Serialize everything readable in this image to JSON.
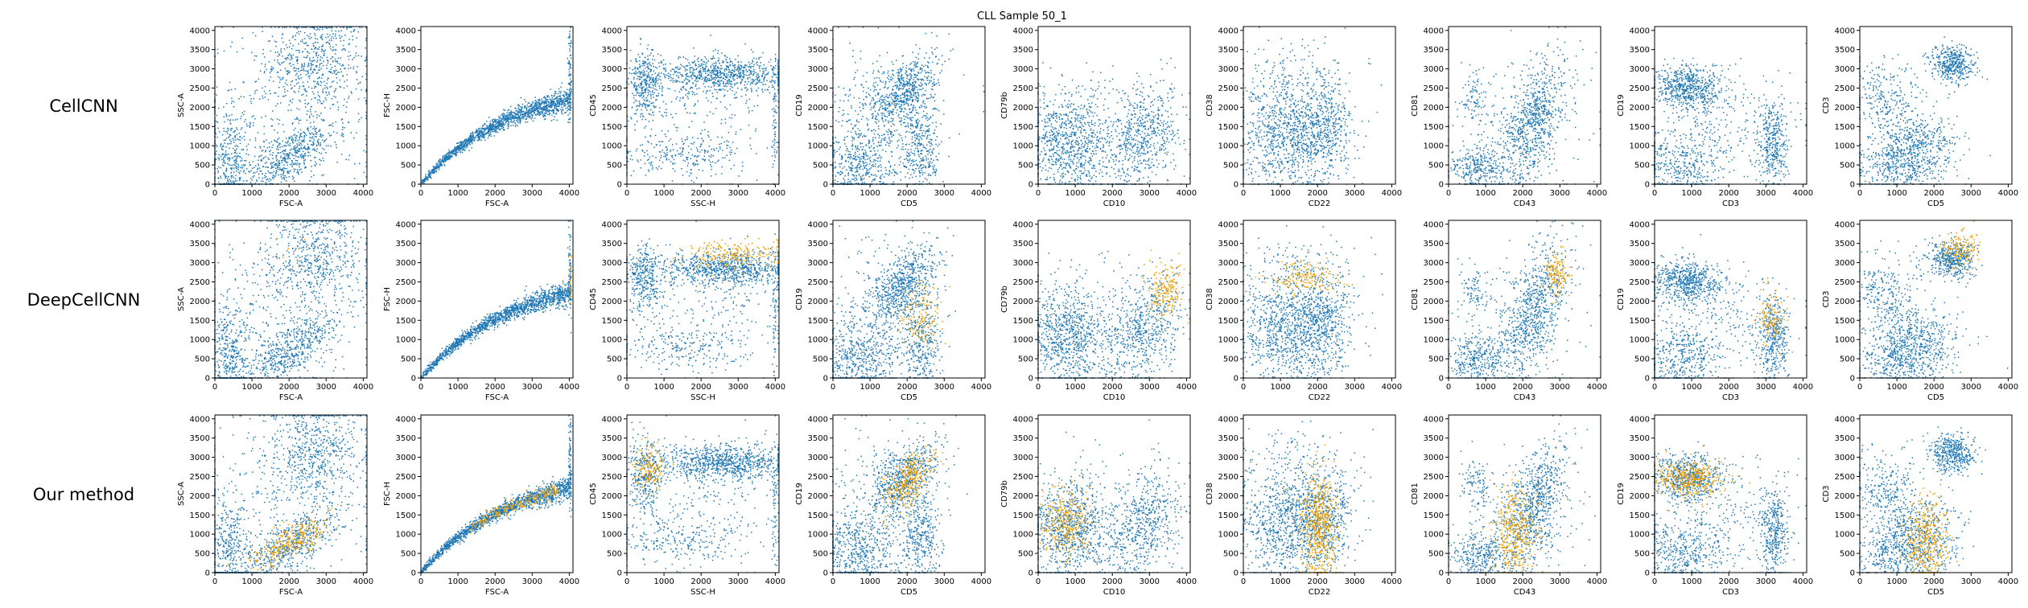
{
  "figure": {
    "title": "CLL Sample 50_1",
    "row_labels": [
      "CellCNN",
      "DeepCellCNN",
      "Our method"
    ]
  },
  "colors": {
    "background_cells": "#1f77b4",
    "selected_cells": "#f0a30a",
    "axes": "#000000"
  },
  "chart_data": {
    "type": "scatter",
    "grid": false,
    "xlim": [
      0,
      4100
    ],
    "ylim": [
      0,
      4100
    ],
    "ticks": [
      0,
      500,
      1000,
      1500,
      2000,
      2500,
      3000,
      3500,
      4000
    ],
    "x_ticks": [
      0,
      1000,
      2000,
      3000,
      4000
    ],
    "y_ticks": [
      0,
      500,
      1000,
      1500,
      2000,
      2500,
      3000,
      3500,
      4000
    ],
    "series": [
      {
        "name": "",
        "color": "#1f77b4"
      },
      {
        "name": "",
        "color": "#f0a30a"
      }
    ],
    "panels": [
      {
        "xlabel": "FSC-A",
        "ylabel": "SSC-A",
        "clusters": [
          {
            "cx": 2700,
            "cy": 3200,
            "sx": 650,
            "sy": 650,
            "n": 560
          },
          {
            "cx": 2000,
            "cy": 700,
            "sx": 650,
            "sy": 320,
            "n": 520,
            "slope": 0.55
          },
          {
            "cx": 400,
            "cy": 600,
            "sx": 280,
            "sy": 650,
            "n": 340
          },
          {
            "cx": 1800,
            "cy": 1800,
            "sx": 1400,
            "sy": 1100,
            "n": 380
          }
        ],
        "selected": [
          [],
          [
            {
              "cx": 2100,
              "cy": 3300,
              "sx": 250,
              "sy": 250,
              "n": 6
            }
          ],
          [
            {
              "cx": 2000,
              "cy": 800,
              "sx": 550,
              "sy": 220,
              "n": 260,
              "slope": 0.5
            }
          ]
        ]
      },
      {
        "xlabel": "FSC-A",
        "ylabel": "FSC-H",
        "clusters": [
          {
            "curve": true,
            "n": 1500,
            "noise": 110
          },
          {
            "cx": 4020,
            "cy": 2700,
            "sx": 25,
            "sy": 600,
            "n": 80
          }
        ],
        "selected": [
          [],
          [
            {
              "cx": 4030,
              "cy": 2500,
              "sx": 25,
              "sy": 400,
              "n": 18
            }
          ],
          [
            {
              "curve": true,
              "xmin": 1300,
              "xmax": 3700,
              "n": 220,
              "noise": 90
            }
          ]
        ]
      },
      {
        "xlabel": "SSC-H",
        "ylabel": "CD45",
        "clusters": [
          {
            "cx": 2600,
            "cy": 2850,
            "sx": 900,
            "sy": 230,
            "n": 800
          },
          {
            "cx": 500,
            "cy": 2550,
            "sx": 220,
            "sy": 450,
            "n": 320
          },
          {
            "cx": 1400,
            "cy": 750,
            "sx": 900,
            "sy": 260,
            "n": 220
          },
          {
            "cx": 2000,
            "cy": 1800,
            "sx": 1200,
            "sy": 800,
            "n": 220
          },
          {
            "cx": 3980,
            "cy": 1500,
            "sx": 30,
            "sy": 900,
            "n": 60
          }
        ],
        "selected": [
          [],
          [
            {
              "cx": 2900,
              "cy": 3200,
              "sx": 650,
              "sy": 200,
              "n": 200
            }
          ],
          [
            {
              "cx": 600,
              "cy": 2700,
              "sx": 200,
              "sy": 300,
              "n": 150
            }
          ]
        ]
      },
      {
        "xlabel": "CD5",
        "ylabel": "CD19",
        "clusters": [
          {
            "cx": 1900,
            "cy": 2400,
            "sx": 450,
            "sy": 420,
            "n": 640,
            "slope": 0.6
          },
          {
            "cx": 700,
            "cy": 500,
            "sx": 600,
            "sy": 500,
            "n": 520
          },
          {
            "cx": 2400,
            "cy": 900,
            "sx": 250,
            "sy": 600,
            "n": 320
          },
          {
            "cx": 1200,
            "cy": 2000,
            "sx": 900,
            "sy": 800,
            "n": 220
          }
        ],
        "selected": [
          [],
          [
            {
              "cx": 2350,
              "cy": 1600,
              "sx": 280,
              "sy": 400,
              "n": 130
            }
          ],
          [
            {
              "cx": 2050,
              "cy": 2400,
              "sx": 330,
              "sy": 320,
              "n": 300,
              "slope": 0.6
            }
          ]
        ]
      },
      {
        "xlabel": "CD10",
        "ylabel": "CD79b",
        "clusters": [
          {
            "cx": 800,
            "cy": 1100,
            "sx": 550,
            "sy": 650,
            "n": 760
          },
          {
            "cx": 2900,
            "cy": 1300,
            "sx": 500,
            "sy": 650,
            "n": 520,
            "slope": 0.4
          },
          {
            "cx": 1800,
            "cy": 1100,
            "sx": 900,
            "sy": 900,
            "n": 240
          }
        ],
        "selected": [
          [],
          [
            {
              "cx": 3450,
              "cy": 2300,
              "sx": 220,
              "sy": 350,
              "n": 180
            }
          ],
          [
            {
              "cx": 700,
              "cy": 1300,
              "sx": 330,
              "sy": 450,
              "n": 300
            }
          ]
        ]
      },
      {
        "xlabel": "CD22",
        "ylabel": "CD38",
        "clusters": [
          {
            "cx": 1300,
            "cy": 1300,
            "sx": 750,
            "sy": 750,
            "n": 1100
          },
          {
            "cx": 2200,
            "cy": 1500,
            "sx": 350,
            "sy": 650,
            "n": 300
          },
          {
            "cx": 1500,
            "cy": 3100,
            "sx": 900,
            "sy": 400,
            "n": 80
          }
        ],
        "selected": [
          [],
          [
            {
              "cx": 1700,
              "cy": 2600,
              "sx": 400,
              "sy": 220,
              "n": 150
            }
          ],
          [
            {
              "cx": 2050,
              "cy": 1100,
              "sx": 230,
              "sy": 700,
              "n": 520
            }
          ]
        ]
      },
      {
        "xlabel": "CD43",
        "ylabel": "CD81",
        "clusters": [
          {
            "cx": 2300,
            "cy": 1700,
            "sx": 450,
            "sy": 700,
            "n": 720,
            "slope": 1.0
          },
          {
            "cx": 800,
            "cy": 400,
            "sx": 400,
            "sy": 300,
            "n": 300
          },
          {
            "cx": 700,
            "cy": 2300,
            "sx": 180,
            "sy": 300,
            "n": 80
          },
          {
            "cx": 1800,
            "cy": 1300,
            "sx": 900,
            "sy": 900,
            "n": 220
          }
        ],
        "selected": [
          [],
          [
            {
              "cx": 2950,
              "cy": 2700,
              "sx": 160,
              "sy": 300,
              "n": 140
            }
          ],
          [
            {
              "cx": 1800,
              "cy": 1000,
              "sx": 300,
              "sy": 600,
              "n": 380
            }
          ]
        ]
      },
      {
        "xlabel": "CD3",
        "ylabel": "CD19",
        "clusters": [
          {
            "cx": 900,
            "cy": 2500,
            "sx": 500,
            "sy": 280,
            "n": 600
          },
          {
            "cx": 700,
            "cy": 500,
            "sx": 600,
            "sy": 450,
            "n": 420
          },
          {
            "cx": 3200,
            "cy": 1000,
            "sx": 200,
            "sy": 600,
            "n": 360
          },
          {
            "cx": 1800,
            "cy": 1500,
            "sx": 1100,
            "sy": 700,
            "n": 240
          }
        ],
        "selected": [
          [],
          [
            {
              "cx": 3150,
              "cy": 1600,
              "sx": 200,
              "sy": 400,
              "n": 110
            }
          ],
          [
            {
              "cx": 900,
              "cy": 2450,
              "sx": 450,
              "sy": 250,
              "n": 360
            }
          ]
        ]
      },
      {
        "xlabel": "CD5",
        "ylabel": "CD3",
        "clusters": [
          {
            "cx": 2500,
            "cy": 3100,
            "sx": 300,
            "sy": 250,
            "n": 420
          },
          {
            "cx": 1500,
            "cy": 900,
            "sx": 600,
            "sy": 500,
            "n": 620
          },
          {
            "cx": 700,
            "cy": 2200,
            "sx": 500,
            "sy": 500,
            "n": 260
          },
          {
            "cx": 800,
            "cy": 400,
            "sx": 500,
            "sy": 300,
            "n": 200
          }
        ],
        "selected": [
          [],
          [
            {
              "cx": 2700,
              "cy": 3300,
              "sx": 250,
              "sy": 250,
              "n": 140
            }
          ],
          [
            {
              "cx": 1800,
              "cy": 800,
              "sx": 280,
              "sy": 550,
              "n": 360
            }
          ]
        ]
      }
    ]
  }
}
